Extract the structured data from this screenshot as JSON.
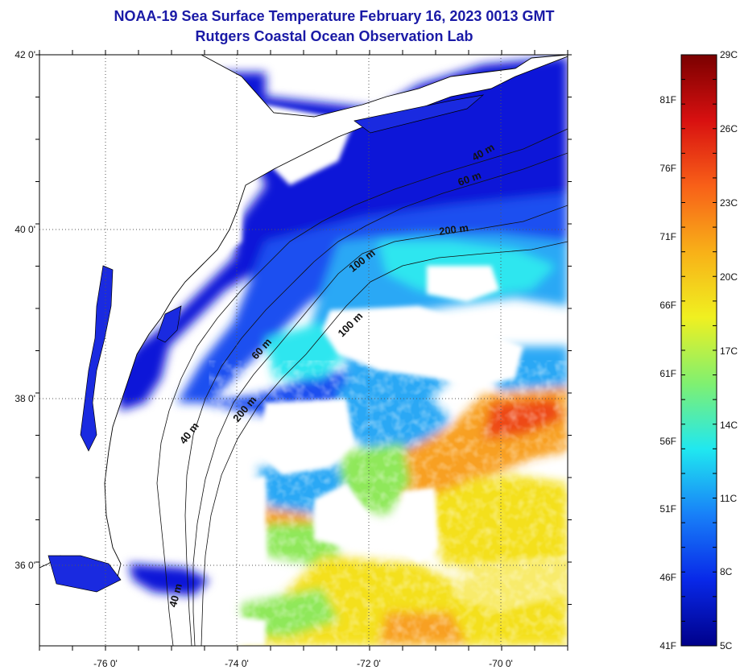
{
  "title": {
    "line1": "NOAA-19 Sea Surface Temperature February 16, 2023 0013 GMT",
    "line2": "Rutgers Coastal Ocean Observation Lab"
  },
  "map": {
    "lat_ticks": [
      "42 0'",
      "40 0'",
      "38 0'",
      "36 0'"
    ],
    "lon_ticks": [
      "-76 0'",
      "-74 0'",
      "-72 0'",
      "-70 0'"
    ],
    "contour_labels": [
      "40 m",
      "60 m",
      "200 m",
      "100 m",
      "100 m",
      "60 m",
      "200 m",
      "40 m",
      "40 m"
    ],
    "palette": {
      "deep_blue": "#0a14d8",
      "blue": "#1f50f0",
      "light_blue": "#2aa8f5",
      "cyan": "#2ee6ef",
      "green": "#8fe85a",
      "yellow": "#f4e01e",
      "orange": "#f8a020",
      "red": "#ee4a18",
      "cloud": "#ffffff",
      "coastline": "#000000"
    }
  },
  "colorbar": {
    "celsius_labels": [
      "29C",
      "26C",
      "23C",
      "20C",
      "17C",
      "14C",
      "11C",
      "8C",
      "5C"
    ],
    "fahrenheit_labels": [
      "81F",
      "76F",
      "71F",
      "66F",
      "61F",
      "56F",
      "51F",
      "46F",
      "41F"
    ],
    "stops": [
      "#7a0000",
      "#d81010",
      "#f86018",
      "#f8b018",
      "#f0f020",
      "#80f070",
      "#20e8f0",
      "#1880f8",
      "#0828e8",
      "#00008a"
    ]
  }
}
